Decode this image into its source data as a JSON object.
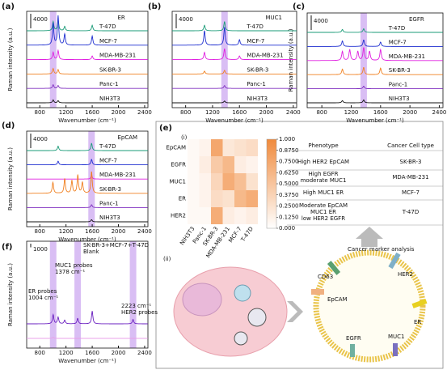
{
  "panels": [
    {
      "label": "(a)",
      "title": "ER",
      "scale_bar": 4000,
      "highlight": [
        1004
      ],
      "xlim": [
        600,
        2450
      ],
      "xticks": [
        800,
        1200,
        1600,
        2000,
        2400
      ],
      "xlabel": "Wavenumber (cm⁻¹)",
      "ylabel": "Raman intensity (a.u.)",
      "series": [
        {
          "name": "T-47D",
          "color": "#1a9b77",
          "peaks": [
            [
              1004,
              2500
            ],
            [
              1080,
              3000
            ],
            [
              1180,
              1200
            ],
            [
              1600,
              1500
            ]
          ]
        },
        {
          "name": "MCF-7",
          "color": "#1f2fd0",
          "peaks": [
            [
              1004,
              6000
            ],
            [
              1080,
              8000
            ],
            [
              1180,
              3000
            ],
            [
              1600,
              2500
            ]
          ]
        },
        {
          "name": "MDA-MB-231",
          "color": "#e020e0",
          "peaks": [
            [
              1004,
              2000
            ],
            [
              1080,
              2500
            ],
            [
              1600,
              1000
            ]
          ]
        },
        {
          "name": "SK-BR-3",
          "color": "#f08020",
          "peaks": [
            [
              1004,
              1500
            ],
            [
              1080,
              1200
            ]
          ]
        },
        {
          "name": "Panc-1",
          "color": "#8030c0",
          "peaks": [
            [
              1004,
              1000
            ],
            [
              1080,
              800
            ]
          ]
        },
        {
          "name": "NIH3T3",
          "color": "#111111",
          "peaks": [
            [
              1004,
              800
            ],
            [
              1080,
              600
            ]
          ]
        }
      ]
    },
    {
      "label": "(b)",
      "title": "MUC1",
      "scale_bar": 4000,
      "highlight": [
        1378
      ],
      "xlim": [
        600,
        2450
      ],
      "xticks": [
        800,
        1200,
        1600,
        2000,
        2400
      ],
      "xlabel": "Wavenumber (cm⁻¹)",
      "series": [
        {
          "name": "T-47D",
          "color": "#1a9b77",
          "peaks": [
            [
              1080,
              1500
            ],
            [
              1378,
              2500
            ]
          ]
        },
        {
          "name": "MCF-7",
          "color": "#1f2fd0",
          "peaks": [
            [
              1080,
              4000
            ],
            [
              1378,
              5000
            ],
            [
              1600,
              1500
            ]
          ]
        },
        {
          "name": "MDA-MB-231",
          "color": "#e020e0",
          "peaks": [
            [
              1080,
              2000
            ],
            [
              1378,
              3000
            ],
            [
              1600,
              1000
            ]
          ]
        },
        {
          "name": "SK-BR-3",
          "color": "#f08020",
          "peaks": [
            [
              1080,
              800
            ],
            [
              1378,
              1000
            ]
          ]
        },
        {
          "name": "Panc-1",
          "color": "#8030c0",
          "peaks": [
            [
              1378,
              800
            ]
          ]
        },
        {
          "name": "NIH3T3",
          "color": "#111111",
          "peaks": [
            [
              1378,
              500
            ]
          ]
        }
      ]
    },
    {
      "label": "(c)",
      "title": "EGFR",
      "scale_bar": 4000,
      "highlight": [
        1370
      ],
      "xlim": [
        600,
        2450
      ],
      "xticks": [
        800,
        1200,
        1600,
        2000,
        2400
      ],
      "xlabel": "Wavenumber (cm⁻¹)",
      "ylabel": "Raman intensity (a.u.)",
      "series": [
        {
          "name": "T-47D",
          "color": "#1a9b77",
          "peaks": [
            [
              1080,
              800
            ],
            [
              1370,
              1000
            ]
          ]
        },
        {
          "name": "MCF-7",
          "color": "#1f2fd0",
          "peaks": [
            [
              1080,
              1500
            ],
            [
              1370,
              1800
            ],
            [
              1600,
              1200
            ]
          ]
        },
        {
          "name": "MDA-MB-231",
          "color": "#e020e0",
          "peaks": [
            [
              1080,
              2500
            ],
            [
              1180,
              3000
            ],
            [
              1290,
              2500
            ],
            [
              1370,
              3500
            ],
            [
              1450,
              2500
            ],
            [
              1600,
              3000
            ]
          ]
        },
        {
          "name": "SK-BR-3",
          "color": "#f08020",
          "peaks": [
            [
              1080,
              1500
            ],
            [
              1370,
              2000
            ],
            [
              1600,
              1800
            ]
          ]
        },
        {
          "name": "Panc-1",
          "color": "#8030c0",
          "peaks": [
            [
              1370,
              700
            ]
          ]
        },
        {
          "name": "NIH3T3",
          "color": "#111111",
          "peaks": [
            [
              1080,
              600
            ],
            [
              1370,
              800
            ]
          ]
        }
      ]
    },
    {
      "label": "(d)",
      "title": "EpCAM",
      "scale_bar": 4000,
      "highlight": [
        1590
      ],
      "xlim": [
        600,
        2450
      ],
      "xticks": [
        800,
        1200,
        1600,
        2000,
        2400
      ],
      "xlabel": "Wavenumber (cm⁻¹)",
      "ylabel": "Raman intensity (a.u.)",
      "series": [
        {
          "name": "T-47D",
          "color": "#1a9b77",
          "peaks": [
            [
              1080,
              1200
            ],
            [
              1590,
              2000
            ]
          ]
        },
        {
          "name": "MCF-7",
          "color": "#1f2fd0",
          "peaks": [
            [
              1080,
              1000
            ],
            [
              1590,
              1500
            ]
          ]
        },
        {
          "name": "MDA-MB-231",
          "color": "#e020e0",
          "peaks": [
            [
              1590,
              1000
            ]
          ]
        },
        {
          "name": "SK-BR-3",
          "color": "#f08020",
          "peaks": [
            [
              1000,
              3000
            ],
            [
              1180,
              4000
            ],
            [
              1290,
              3500
            ],
            [
              1380,
              5000
            ],
            [
              1450,
              3000
            ],
            [
              1590,
              6000
            ]
          ]
        },
        {
          "name": "Panc-1",
          "color": "#8030c0",
          "peaks": [
            [
              1590,
              800
            ]
          ]
        },
        {
          "name": "NIH3T3",
          "color": "#111111",
          "peaks": [
            [
              1590,
              600
            ]
          ]
        }
      ]
    },
    {
      "label": "(f)",
      "scale_bar": 1000,
      "highlight": [
        1004,
        1378,
        2223
      ],
      "xlim": [
        600,
        2450
      ],
      "xticks": [
        800,
        1200,
        1600,
        2000,
        2400
      ],
      "xlabel": "Wavenumber (cm⁻¹)",
      "ylabel": "Raman intensity (a.u.)",
      "series": [
        {
          "name": "SK-BR-3+MCF-7+T-47D",
          "color": "#6a1fc0",
          "peaks": [
            [
              1004,
              2500
            ],
            [
              1080,
              1800
            ],
            [
              1180,
              1000
            ],
            [
              1378,
              1500
            ],
            [
              1600,
              3500
            ],
            [
              2223,
              1200
            ]
          ]
        },
        {
          "name": "Blank",
          "color": "#e8a0e8",
          "peaks": [
            [
              1004,
              300
            ]
          ]
        }
      ],
      "annotations": [
        "MUC1 probes",
        "1378 cm⁻¹",
        "ER probes",
        "1004 cm⁻¹",
        "2223 cm⁻¹",
        "HER2 probes"
      ]
    }
  ],
  "panel_e": {
    "label": "(e)",
    "sub_i": "(i)",
    "sub_ii": "(ii)"
  },
  "heatmap": {
    "rows": [
      "EpCAM",
      "EGFR",
      "MUC1",
      "ER",
      "HER2"
    ],
    "columns": [
      "NIH3T3",
      "Panc-1",
      "SK-BR-3",
      "MDA-MB-231",
      "MCF-7",
      "T-47D"
    ],
    "values": [
      [
        0.05,
        0.1,
        0.75,
        0.2,
        0.25,
        0.3
      ],
      [
        0.05,
        0.15,
        0.45,
        0.6,
        0.15,
        0.1
      ],
      [
        0.05,
        0.1,
        0.35,
        0.7,
        0.55,
        0.25
      ],
      [
        0.05,
        0.1,
        0.3,
        0.25,
        0.6,
        0.7
      ],
      [
        0.05,
        0.05,
        0.7,
        0.15,
        0.1,
        0.15
      ]
    ],
    "color": "#f08a3c",
    "clim": [
      0,
      1
    ],
    "cticks": [
      {
        "value": 1,
        "label": "1.000"
      },
      {
        "value": 0.875,
        "label": "0.8750"
      },
      {
        "value": 0.75,
        "label": "0.7500"
      },
      {
        "value": 0.625,
        "label": "0.6250"
      },
      {
        "value": 0.5,
        "label": "0.5000"
      },
      {
        "value": 0.375,
        "label": "0.3750"
      },
      {
        "value": 0.25,
        "label": "0.2500"
      },
      {
        "value": 0.125,
        "label": "0.1250"
      },
      {
        "value": 0,
        "label": "0.000"
      }
    ]
  },
  "table": {
    "header": [
      "Phenotype",
      "Cancer Cell type"
    ],
    "rows": [
      [
        [
          "High HER2 EpCAM"
        ],
        "SK-BR-3"
      ],
      [
        [
          "High EGFR",
          "moderate MUC1"
        ],
        "MDA-MB-231"
      ],
      [
        [
          "High MUC1 ER"
        ],
        "MCF-7"
      ],
      [
        [
          "Moderate EpCAM",
          "MUC1 ER",
          "low HER2 EGFR"
        ],
        "T-47D"
      ]
    ]
  },
  "diagram": {
    "title": "Cancer marker analysis",
    "labels": [
      "HER2",
      "CD63",
      "EpCAM",
      "ER",
      "MUC1",
      "EGFR"
    ]
  }
}
